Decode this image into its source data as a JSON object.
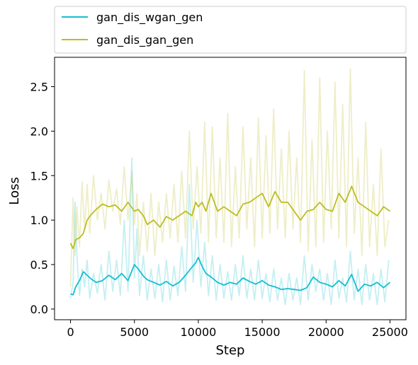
{
  "chart_data": {
    "type": "line",
    "xlabel": "Step",
    "ylabel": "Loss",
    "xlim": [
      -1250,
      26250
    ],
    "ylim": [
      -0.12,
      2.83
    ],
    "xticks": [
      0,
      5000,
      10000,
      15000,
      20000,
      25000
    ],
    "yticks": [
      0.0,
      0.5,
      1.0,
      1.5,
      2.0,
      2.5
    ],
    "xtick_labels": [
      "0",
      "5000",
      "10000",
      "15000",
      "20000",
      "25000"
    ],
    "ytick_labels": [
      "0.0",
      "0.5",
      "1.0",
      "1.5",
      "2.0",
      "2.5"
    ],
    "grid": false,
    "legend_position": "above plot, left",
    "series": [
      {
        "name": "gan_dis_wgan_gen",
        "color": "#17becf",
        "raw_alpha": 0.25,
        "smoothed": {
          "x": [
            0,
            200,
            400,
            700,
            1000,
            1300,
            1600,
            2000,
            2500,
            3000,
            3500,
            4000,
            4500,
            5000,
            5300,
            5700,
            6000,
            6500,
            7000,
            7500,
            8000,
            8500,
            9000,
            9500,
            9800,
            10000,
            10300,
            10600,
            11000,
            11500,
            12000,
            12500,
            13000,
            13500,
            14000,
            14500,
            15000,
            15500,
            16000,
            16500,
            17000,
            17500,
            18000,
            18500,
            19000,
            19500,
            20000,
            20500,
            21000,
            21500,
            22000,
            22500,
            23000,
            23500,
            24000,
            24500,
            25000
          ],
          "y": [
            0.17,
            0.16,
            0.25,
            0.32,
            0.42,
            0.38,
            0.34,
            0.3,
            0.32,
            0.38,
            0.33,
            0.4,
            0.32,
            0.5,
            0.45,
            0.37,
            0.33,
            0.3,
            0.27,
            0.31,
            0.26,
            0.3,
            0.38,
            0.47,
            0.52,
            0.58,
            0.48,
            0.4,
            0.36,
            0.3,
            0.27,
            0.3,
            0.28,
            0.35,
            0.31,
            0.28,
            0.32,
            0.27,
            0.25,
            0.22,
            0.23,
            0.22,
            0.21,
            0.24,
            0.36,
            0.3,
            0.28,
            0.25,
            0.32,
            0.26,
            0.39,
            0.2,
            0.28,
            0.26,
            0.3,
            0.24,
            0.3
          ]
        },
        "raw": {
          "x": [
            0,
            200,
            350,
            500,
            700,
            900,
            1100,
            1300,
            1500,
            1800,
            2100,
            2400,
            2700,
            3000,
            3300,
            3600,
            3900,
            4200,
            4500,
            4800,
            5000,
            5200,
            5400,
            5700,
            6000,
            6300,
            6600,
            6900,
            7200,
            7500,
            7800,
            8100,
            8400,
            8700,
            9000,
            9300,
            9600,
            9900,
            10200,
            10500,
            10800,
            11100,
            11400,
            11700,
            12000,
            12300,
            12600,
            12900,
            13200,
            13500,
            13800,
            14100,
            14400,
            14700,
            15000,
            15300,
            15600,
            15900,
            16200,
            16500,
            16800,
            17100,
            17400,
            17700,
            18000,
            18300,
            18600,
            18900,
            19200,
            19500,
            19800,
            20100,
            20400,
            20700,
            21000,
            21300,
            21600,
            21900,
            22200,
            22500,
            22800,
            23100,
            23400,
            23700,
            24000,
            24300,
            24600,
            24900
          ],
          "y": [
            0.12,
            0.3,
            1.2,
            0.6,
            0.15,
            0.45,
            0.25,
            0.55,
            0.12,
            0.4,
            0.18,
            0.5,
            0.1,
            0.65,
            0.2,
            0.55,
            0.15,
            1.0,
            0.2,
            1.7,
            0.35,
            0.9,
            0.15,
            0.6,
            0.1,
            0.45,
            0.12,
            0.5,
            0.08,
            0.55,
            0.1,
            0.48,
            0.15,
            0.7,
            0.2,
            1.4,
            0.3,
            1.0,
            0.25,
            0.75,
            0.15,
            0.6,
            0.1,
            0.5,
            0.12,
            0.42,
            0.1,
            0.5,
            0.15,
            0.6,
            0.12,
            0.45,
            0.1,
            0.55,
            0.12,
            0.4,
            0.08,
            0.45,
            0.1,
            0.35,
            0.05,
            0.4,
            0.1,
            0.35,
            0.05,
            0.6,
            0.1,
            0.5,
            0.2,
            0.45,
            0.1,
            0.4,
            0.05,
            0.55,
            0.12,
            0.35,
            0.08,
            0.65,
            0.1,
            0.45,
            0.05,
            0.5,
            0.1,
            0.4,
            0.05,
            0.45,
            0.08,
            0.55
          ]
        }
      },
      {
        "name": "gan_dis_gan_gen",
        "color": "#bcbd22",
        "raw_alpha": 0.25,
        "smoothed": {
          "x": [
            0,
            200,
            400,
            700,
            1000,
            1300,
            1600,
            2000,
            2500,
            3000,
            3500,
            4000,
            4500,
            5000,
            5300,
            5700,
            6000,
            6500,
            7000,
            7500,
            8000,
            8500,
            9000,
            9500,
            9800,
            10000,
            10300,
            10600,
            11000,
            11500,
            12000,
            12500,
            13000,
            13500,
            14000,
            14500,
            15000,
            15500,
            16000,
            16500,
            17000,
            17500,
            18000,
            18500,
            19000,
            19500,
            20000,
            20500,
            21000,
            21500,
            22000,
            22500,
            23000,
            23500,
            24000,
            24500,
            25000
          ],
          "y": [
            0.74,
            0.68,
            0.78,
            0.8,
            0.85,
            1.0,
            1.06,
            1.12,
            1.18,
            1.15,
            1.17,
            1.1,
            1.2,
            1.1,
            1.12,
            1.05,
            0.95,
            1.0,
            0.92,
            1.04,
            1.0,
            1.05,
            1.1,
            1.05,
            1.2,
            1.15,
            1.2,
            1.1,
            1.3,
            1.1,
            1.15,
            1.1,
            1.05,
            1.18,
            1.2,
            1.25,
            1.3,
            1.15,
            1.32,
            1.2,
            1.2,
            1.1,
            1.0,
            1.1,
            1.12,
            1.2,
            1.12,
            1.1,
            1.3,
            1.2,
            1.38,
            1.2,
            1.15,
            1.1,
            1.05,
            1.15,
            1.1
          ]
        },
        "raw": {
          "x": [
            0,
            200,
            350,
            500,
            700,
            900,
            1100,
            1300,
            1500,
            1800,
            2100,
            2400,
            2700,
            3000,
            3300,
            3600,
            3900,
            4200,
            4500,
            4800,
            5000,
            5200,
            5400,
            5700,
            6000,
            6300,
            6600,
            6900,
            7200,
            7500,
            7800,
            8100,
            8400,
            8700,
            9000,
            9300,
            9600,
            9900,
            10200,
            10500,
            10800,
            11100,
            11400,
            11700,
            12000,
            12300,
            12600,
            12900,
            13200,
            13500,
            13800,
            14100,
            14400,
            14700,
            15000,
            15300,
            15600,
            15900,
            16200,
            16500,
            16800,
            17100,
            17400,
            17700,
            18000,
            18300,
            18600,
            18900,
            19200,
            19500,
            19800,
            20100,
            20400,
            20700,
            21000,
            21300,
            21600,
            21900,
            22200,
            22500,
            22800,
            23100,
            23400,
            23700,
            24000,
            24300,
            24600,
            24900
          ],
          "y": [
            0.25,
            1.25,
            0.6,
            1.15,
            0.7,
            1.43,
            0.9,
            1.4,
            0.85,
            1.5,
            1.0,
            1.3,
            0.9,
            1.45,
            1.1,
            1.35,
            0.95,
            1.6,
            1.0,
            1.55,
            0.95,
            1.3,
            0.6,
            1.2,
            0.65,
            1.3,
            0.6,
            1.2,
            0.75,
            1.3,
            0.8,
            1.4,
            0.75,
            1.55,
            0.8,
            2.0,
            0.9,
            1.6,
            0.85,
            2.1,
            0.75,
            2.05,
            0.8,
            1.7,
            0.75,
            2.2,
            0.7,
            1.6,
            0.8,
            2.05,
            0.9,
            1.7,
            0.7,
            2.15,
            0.8,
            1.95,
            0.85,
            2.25,
            0.9,
            1.8,
            0.8,
            2.0,
            0.9,
            1.7,
            0.75,
            2.68,
            0.65,
            1.9,
            0.7,
            2.6,
            0.75,
            2.0,
            0.9,
            2.55,
            0.8,
            2.3,
            0.7,
            2.7,
            0.85,
            1.7,
            0.6,
            2.1,
            0.7,
            1.4,
            0.6,
            1.8,
            0.7,
            1.0
          ]
        }
      }
    ]
  }
}
